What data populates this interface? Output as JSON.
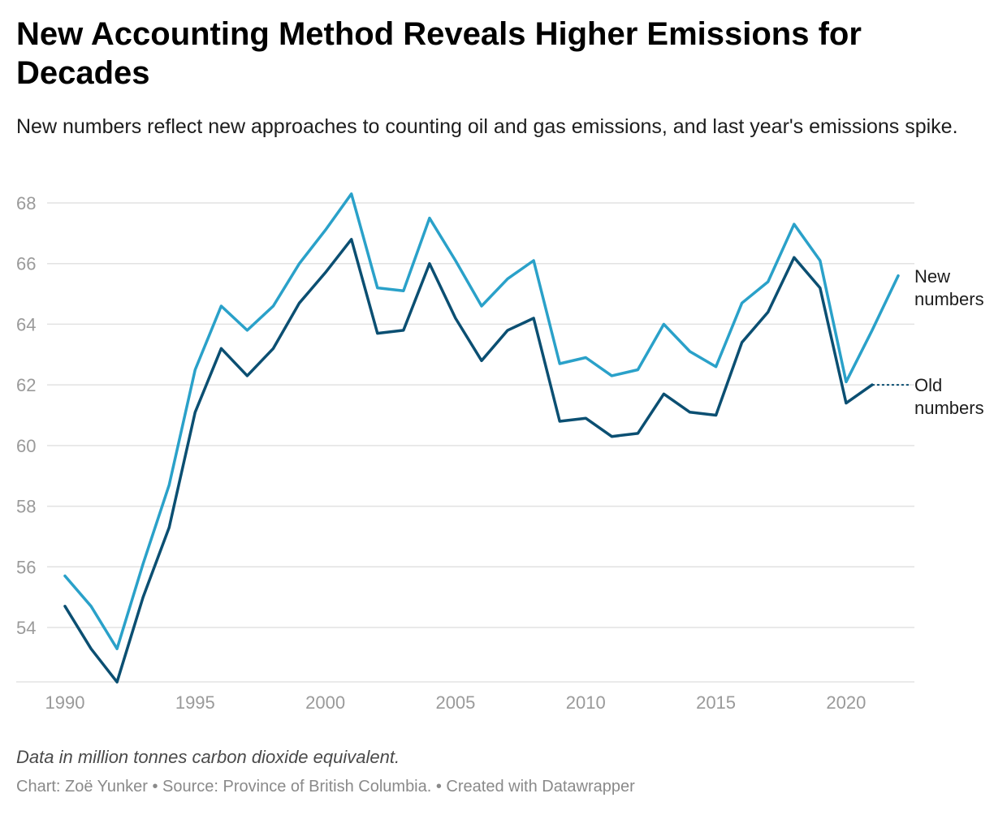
{
  "header": {
    "title": "New Accounting Method Reveals Higher Emissions for Decades",
    "subtitle": "New numbers reflect new approaches to counting oil and gas emissions, and last year's emissions spike."
  },
  "footer": {
    "note": "Data in million tonnes carbon dioxide equivalent.",
    "credit": "Chart: Zoë Yunker • Source: Province of British Columbia.  • Created with Datawrapper"
  },
  "colors": {
    "new": "#2aa1c9",
    "old": "#0b4f72",
    "grid": "#e2e2e2",
    "tick": "#9a9a9a"
  },
  "chart_data": {
    "type": "line",
    "title": "New Accounting Method Reveals Higher Emissions for Decades",
    "ylabel": "Data in million tonnes carbon dioxide equivalent.",
    "xlim": [
      1990,
      2022
    ],
    "ylim": [
      52,
      68.5
    ],
    "x_ticks": [
      1990,
      1995,
      2000,
      2005,
      2010,
      2015,
      2020
    ],
    "y_ticks": [
      54,
      56,
      58,
      60,
      62,
      64,
      66,
      68
    ],
    "grid": true,
    "series": [
      {
        "name": "New numbers",
        "label_lines": [
          "New",
          "numbers"
        ],
        "x": [
          1990,
          1991,
          1992,
          1993,
          1994,
          1995,
          1996,
          1997,
          1998,
          1999,
          2000,
          2001,
          2002,
          2003,
          2004,
          2005,
          2006,
          2007,
          2008,
          2009,
          2010,
          2011,
          2012,
          2013,
          2014,
          2015,
          2016,
          2017,
          2018,
          2019,
          2020,
          2021,
          2022
        ],
        "values": [
          55.7,
          54.7,
          53.3,
          56.1,
          58.7,
          62.5,
          64.6,
          63.8,
          64.6,
          66.0,
          67.1,
          68.3,
          65.2,
          65.1,
          67.5,
          66.1,
          64.6,
          65.5,
          66.1,
          62.7,
          62.9,
          62.3,
          62.5,
          64.0,
          63.1,
          62.6,
          64.7,
          65.4,
          67.3,
          66.1,
          62.1,
          63.8,
          65.6
        ]
      },
      {
        "name": "Old numbers",
        "label_lines": [
          "Old",
          "numbers"
        ],
        "x": [
          1990,
          1991,
          1992,
          1993,
          1994,
          1995,
          1996,
          1997,
          1998,
          1999,
          2000,
          2001,
          2002,
          2003,
          2004,
          2005,
          2006,
          2007,
          2008,
          2009,
          2010,
          2011,
          2012,
          2013,
          2014,
          2015,
          2016,
          2017,
          2018,
          2019,
          2020,
          2021
        ],
        "values": [
          54.7,
          53.3,
          52.2,
          55.0,
          57.3,
          61.1,
          63.2,
          62.3,
          63.2,
          64.7,
          65.7,
          66.8,
          63.7,
          63.8,
          66.0,
          64.2,
          62.8,
          63.8,
          64.2,
          60.8,
          60.9,
          60.3,
          60.4,
          61.7,
          61.1,
          61.0,
          63.4,
          64.4,
          66.2,
          65.2,
          61.4,
          62.0
        ],
        "dotted_extension_to": 2022
      }
    ]
  }
}
